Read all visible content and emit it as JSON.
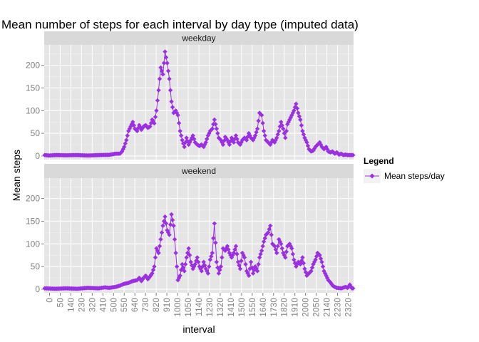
{
  "chart_data": {
    "type": "line",
    "title": "Mean number of steps for each interval by day type (imputed data)",
    "xlabel": "interval",
    "ylabel": "Mean steps",
    "ylim": [
      -8,
      245
    ],
    "yticks": [
      0,
      50,
      100,
      150,
      200
    ],
    "xticks": [
      "0",
      "50",
      "140",
      "230",
      "320",
      "410",
      "500",
      "550",
      "640",
      "730",
      "820",
      "910",
      "1000",
      "1050",
      "1140",
      "1230",
      "1320",
      "1410",
      "1500",
      "1550",
      "1640",
      "1730",
      "1820",
      "1910",
      "2000",
      "2050",
      "2140",
      "2230",
      "2320"
    ],
    "x_domain": [
      0,
      288
    ],
    "grid": true,
    "series_color": "#9a30e0",
    "legend": {
      "title": "Legend",
      "entries": [
        "Mean steps/day"
      ],
      "position": "right"
    },
    "panels": [
      {
        "name": "weekday",
        "knots": [
          [
            0,
            2
          ],
          [
            4,
            1
          ],
          [
            10,
            2
          ],
          [
            20,
            1.5
          ],
          [
            30,
            2
          ],
          [
            40,
            1
          ],
          [
            50,
            2
          ],
          [
            60,
            2.5
          ],
          [
            66,
            5
          ],
          [
            70,
            5
          ],
          [
            72,
            10
          ],
          [
            74,
            20
          ],
          [
            76,
            35
          ],
          [
            78,
            55
          ],
          [
            80,
            65
          ],
          [
            82,
            75
          ],
          [
            84,
            60
          ],
          [
            86,
            55
          ],
          [
            88,
            68
          ],
          [
            90,
            58
          ],
          [
            92,
            65
          ],
          [
            94,
            68
          ],
          [
            96,
            62
          ],
          [
            98,
            65
          ],
          [
            100,
            80
          ],
          [
            102,
            72
          ],
          [
            104,
            100
          ],
          [
            106,
            145
          ],
          [
            108,
            195
          ],
          [
            110,
            180
          ],
          [
            112,
            230
          ],
          [
            114,
            205
          ],
          [
            116,
            170
          ],
          [
            118,
            120
          ],
          [
            120,
            95
          ],
          [
            122,
            100
          ],
          [
            124,
            90
          ],
          [
            126,
            55
          ],
          [
            128,
            35
          ],
          [
            130,
            20
          ],
          [
            132,
            40
          ],
          [
            134,
            25
          ],
          [
            136,
            35
          ],
          [
            138,
            45
          ],
          [
            140,
            30
          ],
          [
            142,
            25
          ],
          [
            144,
            22
          ],
          [
            146,
            25
          ],
          [
            148,
            20
          ],
          [
            150,
            30
          ],
          [
            152,
            45
          ],
          [
            154,
            55
          ],
          [
            156,
            60
          ],
          [
            158,
            80
          ],
          [
            160,
            60
          ],
          [
            162,
            40
          ],
          [
            164,
            35
          ],
          [
            166,
            25
          ],
          [
            168,
            42
          ],
          [
            170,
            35
          ],
          [
            172,
            25
          ],
          [
            174,
            40
          ],
          [
            176,
            30
          ],
          [
            178,
            45
          ],
          [
            180,
            30
          ],
          [
            182,
            25
          ],
          [
            184,
            35
          ],
          [
            186,
            40
          ],
          [
            188,
            35
          ],
          [
            190,
            50
          ],
          [
            192,
            40
          ],
          [
            194,
            35
          ],
          [
            196,
            45
          ],
          [
            198,
            60
          ],
          [
            200,
            95
          ],
          [
            202,
            90
          ],
          [
            204,
            55
          ],
          [
            206,
            35
          ],
          [
            208,
            30
          ],
          [
            210,
            25
          ],
          [
            212,
            35
          ],
          [
            214,
            30
          ],
          [
            216,
            40
          ],
          [
            218,
            55
          ],
          [
            220,
            75
          ],
          [
            222,
            60
          ],
          [
            224,
            40
          ],
          [
            226,
            70
          ],
          [
            228,
            80
          ],
          [
            230,
            90
          ],
          [
            232,
            100
          ],
          [
            234,
            115
          ],
          [
            236,
            95
          ],
          [
            238,
            80
          ],
          [
            240,
            55
          ],
          [
            242,
            40
          ],
          [
            244,
            30
          ],
          [
            246,
            15
          ],
          [
            248,
            10
          ],
          [
            250,
            12
          ],
          [
            252,
            20
          ],
          [
            254,
            25
          ],
          [
            256,
            30
          ],
          [
            258,
            20
          ],
          [
            260,
            15
          ],
          [
            262,
            20
          ],
          [
            264,
            10
          ],
          [
            266,
            8
          ],
          [
            268,
            10
          ],
          [
            270,
            5
          ],
          [
            272,
            8
          ],
          [
            274,
            3
          ],
          [
            276,
            5
          ],
          [
            278,
            2
          ],
          [
            280,
            3
          ],
          [
            282,
            2
          ],
          [
            286,
            2
          ]
        ]
      },
      {
        "name": "weekend",
        "knots": [
          [
            0,
            2
          ],
          [
            10,
            1
          ],
          [
            20,
            2
          ],
          [
            30,
            1
          ],
          [
            40,
            3
          ],
          [
            50,
            2
          ],
          [
            56,
            4
          ],
          [
            60,
            3
          ],
          [
            66,
            5
          ],
          [
            70,
            8
          ],
          [
            74,
            12
          ],
          [
            78,
            14
          ],
          [
            82,
            18
          ],
          [
            86,
            20
          ],
          [
            88,
            25
          ],
          [
            90,
            18
          ],
          [
            92,
            25
          ],
          [
            94,
            30
          ],
          [
            96,
            22
          ],
          [
            98,
            28
          ],
          [
            100,
            35
          ],
          [
            102,
            50
          ],
          [
            104,
            90
          ],
          [
            106,
            80
          ],
          [
            108,
            110
          ],
          [
            110,
            140
          ],
          [
            112,
            160
          ],
          [
            114,
            130
          ],
          [
            116,
            120
          ],
          [
            118,
            165
          ],
          [
            120,
            140
          ],
          [
            122,
            80
          ],
          [
            124,
            20
          ],
          [
            126,
            30
          ],
          [
            128,
            55
          ],
          [
            130,
            40
          ],
          [
            132,
            70
          ],
          [
            134,
            90
          ],
          [
            136,
            60
          ],
          [
            138,
            45
          ],
          [
            140,
            55
          ],
          [
            142,
            70
          ],
          [
            144,
            50
          ],
          [
            146,
            40
          ],
          [
            148,
            60
          ],
          [
            150,
            45
          ],
          [
            152,
            35
          ],
          [
            154,
            65
          ],
          [
            156,
            80
          ],
          [
            158,
            145
          ],
          [
            160,
            60
          ],
          [
            162,
            35
          ],
          [
            164,
            50
          ],
          [
            166,
            90
          ],
          [
            168,
            85
          ],
          [
            170,
            95
          ],
          [
            172,
            80
          ],
          [
            174,
            70
          ],
          [
            176,
            80
          ],
          [
            178,
            95
          ],
          [
            180,
            60
          ],
          [
            182,
            45
          ],
          [
            184,
            80
          ],
          [
            186,
            70
          ],
          [
            188,
            40
          ],
          [
            190,
            30
          ],
          [
            192,
            60
          ],
          [
            194,
            35
          ],
          [
            196,
            50
          ],
          [
            198,
            40
          ],
          [
            200,
            70
          ],
          [
            202,
            85
          ],
          [
            204,
            105
          ],
          [
            206,
            120
          ],
          [
            208,
            125
          ],
          [
            210,
            140
          ],
          [
            212,
            100
          ],
          [
            214,
            95
          ],
          [
            216,
            80
          ],
          [
            218,
            110
          ],
          [
            220,
            100
          ],
          [
            222,
            80
          ],
          [
            224,
            70
          ],
          [
            226,
            95
          ],
          [
            228,
            100
          ],
          [
            230,
            90
          ],
          [
            232,
            65
          ],
          [
            234,
            50
          ],
          [
            236,
            60
          ],
          [
            238,
            55
          ],
          [
            240,
            70
          ],
          [
            242,
            45
          ],
          [
            244,
            30
          ],
          [
            246,
            35
          ],
          [
            248,
            40
          ],
          [
            250,
            55
          ],
          [
            252,
            65
          ],
          [
            254,
            80
          ],
          [
            256,
            75
          ],
          [
            258,
            60
          ],
          [
            260,
            40
          ],
          [
            262,
            30
          ],
          [
            264,
            20
          ],
          [
            266,
            15
          ],
          [
            268,
            8
          ],
          [
            270,
            5
          ],
          [
            272,
            3
          ],
          [
            276,
            2
          ],
          [
            280,
            5
          ],
          [
            282,
            3
          ],
          [
            284,
            10
          ],
          [
            286,
            2
          ]
        ]
      }
    ]
  }
}
